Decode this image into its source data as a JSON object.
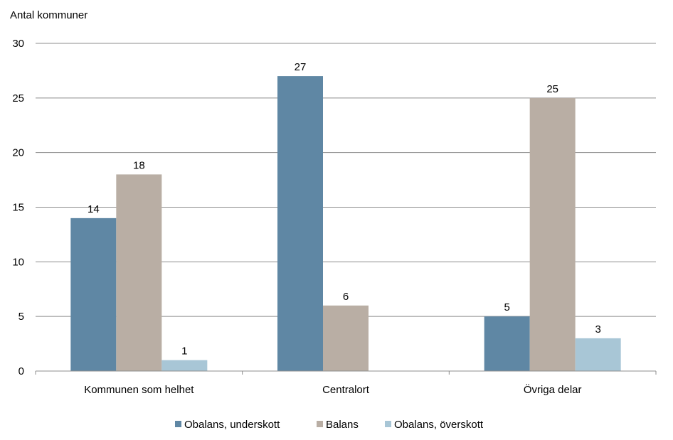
{
  "chart_data": {
    "type": "bar",
    "ylabel": "Antal kommuner",
    "categories": [
      "Kommunen som helhet",
      "Centralort",
      "Övriga delar"
    ],
    "series": [
      {
        "name": "Obalans, underskott",
        "color": "#5f87a4",
        "values": [
          14,
          27,
          5
        ]
      },
      {
        "name": "Balans",
        "color": "#b9aea4",
        "values": [
          18,
          6,
          25
        ]
      },
      {
        "name": "Obalans, överskott",
        "color": "#a8c6d6",
        "values": [
          1,
          null,
          3
        ]
      }
    ],
    "ylim": [
      0,
      30
    ],
    "yticks": [
      0,
      5,
      10,
      15,
      20,
      25,
      30
    ],
    "grid": true,
    "legend": "bottom"
  }
}
